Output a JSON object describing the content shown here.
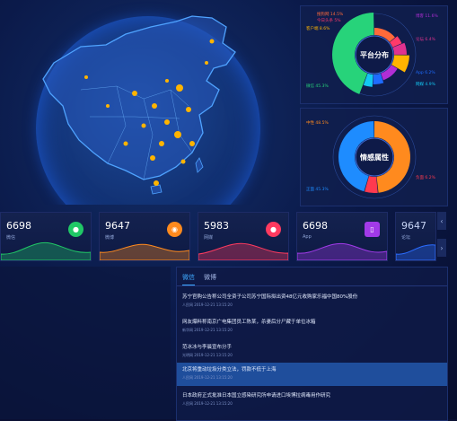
{
  "platform_chart": {
    "title": "平台分布",
    "segments": [
      {
        "label": "搜狗网",
        "value": 14.5,
        "display": "搜狗网 14.5%",
        "color": "#ff6a3a"
      },
      {
        "label": "今日头条",
        "value": 5,
        "display": "今日头条 5%",
        "color": "#ff3a6a"
      },
      {
        "label": "论坛",
        "value": 6.4,
        "display": "论坛 6.4%",
        "color": "#e0328f"
      },
      {
        "label": "客户端",
        "value": 8.6,
        "display": "客户端 8.6%",
        "color": "#ffb400"
      },
      {
        "label": "博客",
        "value": 11.6,
        "display": "博客 11.6%",
        "color": "#b12ed6"
      },
      {
        "label": "App",
        "value": 6.2,
        "display": "App 6.2%",
        "color": "#1e6cff"
      },
      {
        "label": "网媒",
        "value": 4.9,
        "display": "网媒 4.9%",
        "color": "#13c7f2"
      },
      {
        "label": "微信",
        "value": 45.3,
        "display": "微信 45.3%",
        "color": "#27d37a"
      }
    ]
  },
  "sentiment_chart": {
    "title": "情感属性",
    "segments": [
      {
        "label": "中性",
        "value": 48.5,
        "display": "中性 48.5%",
        "color": "#ff8a1e"
      },
      {
        "label": "负面",
        "value": 6.2,
        "display": "负面 6.2%",
        "color": "#ff3a4f"
      },
      {
        "label": "正面",
        "value": 45.3,
        "display": "正面 45.3%",
        "color": "#1e8cff"
      }
    ]
  },
  "stats": [
    {
      "value": "6698",
      "label": "微信",
      "icon": "wechat-icon",
      "color": "#20c766"
    },
    {
      "value": "9647",
      "label": "微博",
      "icon": "weibo-icon",
      "color": "#ff8a1e"
    },
    {
      "value": "5983",
      "label": "网媒",
      "icon": "location-icon",
      "color": "#ff3a5f"
    },
    {
      "value": "6698",
      "label": "App",
      "icon": "phone-icon",
      "color": "#a13ae8"
    },
    {
      "value": "9647",
      "label": "论坛",
      "icon": "forum-icon",
      "color": "#2a6cff"
    }
  ],
  "nav": {
    "prev": "‹",
    "next": "›"
  },
  "news": {
    "tabs": [
      "微信",
      "微博"
    ],
    "items": [
      {
        "title": "苏宁官购公告称公司全资子公司苏宁国际拟出资48亿元收购家乐福中国80%股份",
        "meta": "人民网   2019-12-21 13:15:20"
      },
      {
        "title": "网友爆料称南京广电集团员工陈某，杀妻后分尸藏于单位冰箱",
        "meta": "新华网   2019-12-21 13:15:20"
      },
      {
        "title": "范冰冰与李晨宣布分手",
        "meta": "光明网   2019-12-21 13:15:20"
      },
      {
        "title": "北京将重动垃圾分类立法，罚款不低于上海",
        "meta": "人民网   2019-12-21 13:15:20"
      },
      {
        "title": "日本政府正式批准日本国立感染研究所申请进口埃博拉病毒用作研究",
        "meta": "人民网   2019-12-21 13:15:20"
      }
    ]
  }
}
